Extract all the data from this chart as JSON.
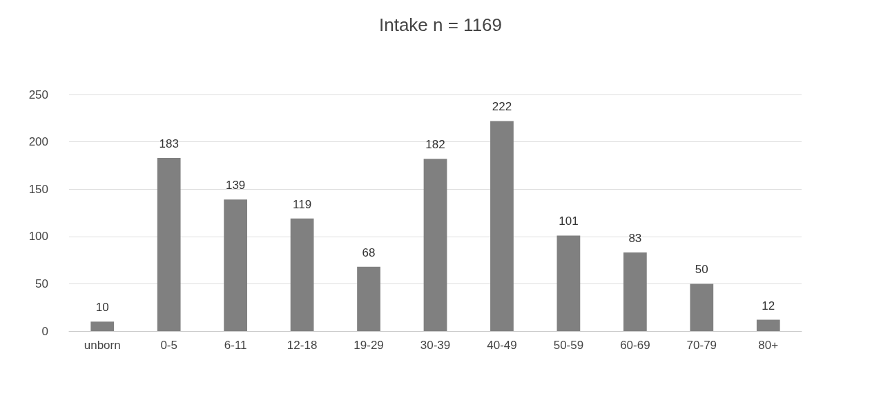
{
  "chart_data": {
    "type": "bar",
    "title": "Intake n = 1169",
    "categories": [
      "unborn",
      "0-5",
      "6-11",
      "12-18",
      "19-29",
      "30-39",
      "40-49",
      "50-59",
      "60-69",
      "70-79",
      "80+"
    ],
    "values": [
      10,
      183,
      139,
      119,
      68,
      182,
      222,
      101,
      83,
      50,
      12
    ],
    "color": "#808080",
    "ylim": [
      0,
      250
    ],
    "yticks": [
      0,
      50,
      100,
      150,
      200,
      250
    ],
    "grid": "y",
    "data_labels": true
  }
}
